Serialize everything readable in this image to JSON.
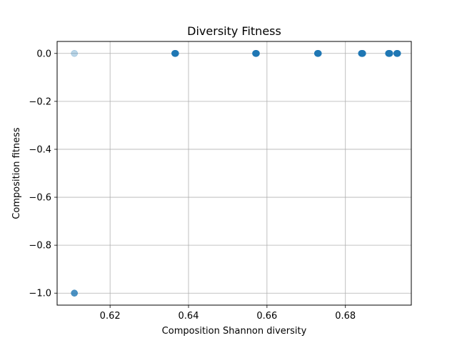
{
  "chart_data": {
    "type": "scatter",
    "title": "Diversity Fitness",
    "xlabel": "Composition Shannon diversity",
    "ylabel": "Composition fitness",
    "xlim": [
      0.6065,
      0.6968
    ],
    "ylim": [
      -1.05,
      0.05
    ],
    "xticks": [
      {
        "value": 0.62,
        "label": "0.62"
      },
      {
        "value": 0.64,
        "label": "0.64"
      },
      {
        "value": 0.66,
        "label": "0.66"
      },
      {
        "value": 0.68,
        "label": "0.68"
      }
    ],
    "yticks": [
      {
        "value": 0.0,
        "label": "0.0"
      },
      {
        "value": -0.2,
        "label": "−0.2"
      },
      {
        "value": -0.4,
        "label": "−0.4"
      },
      {
        "value": -0.6,
        "label": "−0.6"
      },
      {
        "value": -0.8,
        "label": "−0.8"
      },
      {
        "value": -1.0,
        "label": "−1.0"
      }
    ],
    "grid": true,
    "marker_color": "#1f77b4",
    "points": [
      {
        "x": 0.6109,
        "y": 0.0,
        "alpha": 0.3
      },
      {
        "x": 0.6109,
        "y": -1.0,
        "alpha": 0.8
      },
      {
        "x": 0.6365,
        "y": 0.0,
        "alpha": 0.9
      },
      {
        "x": 0.6366,
        "y": 0.0,
        "alpha": 0.9
      },
      {
        "x": 0.6367,
        "y": 0.0,
        "alpha": 0.9
      },
      {
        "x": 0.6571,
        "y": 0.0,
        "alpha": 0.9
      },
      {
        "x": 0.6572,
        "y": 0.0,
        "alpha": 0.9
      },
      {
        "x": 0.6573,
        "y": 0.0,
        "alpha": 0.9
      },
      {
        "x": 0.6729,
        "y": 0.0,
        "alpha": 0.9
      },
      {
        "x": 0.673,
        "y": 0.0,
        "alpha": 0.9
      },
      {
        "x": 0.6731,
        "y": 0.0,
        "alpha": 0.9
      },
      {
        "x": 0.6841,
        "y": 0.0,
        "alpha": 0.9
      },
      {
        "x": 0.6842,
        "y": 0.0,
        "alpha": 0.9
      },
      {
        "x": 0.6843,
        "y": 0.0,
        "alpha": 0.9
      },
      {
        "x": 0.6844,
        "y": 0.0,
        "alpha": 0.9
      },
      {
        "x": 0.691,
        "y": 0.0,
        "alpha": 0.9
      },
      {
        "x": 0.6911,
        "y": 0.0,
        "alpha": 0.9
      },
      {
        "x": 0.6912,
        "y": 0.0,
        "alpha": 0.9
      },
      {
        "x": 0.6913,
        "y": 0.0,
        "alpha": 0.9
      },
      {
        "x": 0.6931,
        "y": 0.0,
        "alpha": 0.9
      },
      {
        "x": 0.6932,
        "y": 0.0,
        "alpha": 0.9
      },
      {
        "x": 0.6933,
        "y": 0.0,
        "alpha": 0.9
      }
    ]
  }
}
